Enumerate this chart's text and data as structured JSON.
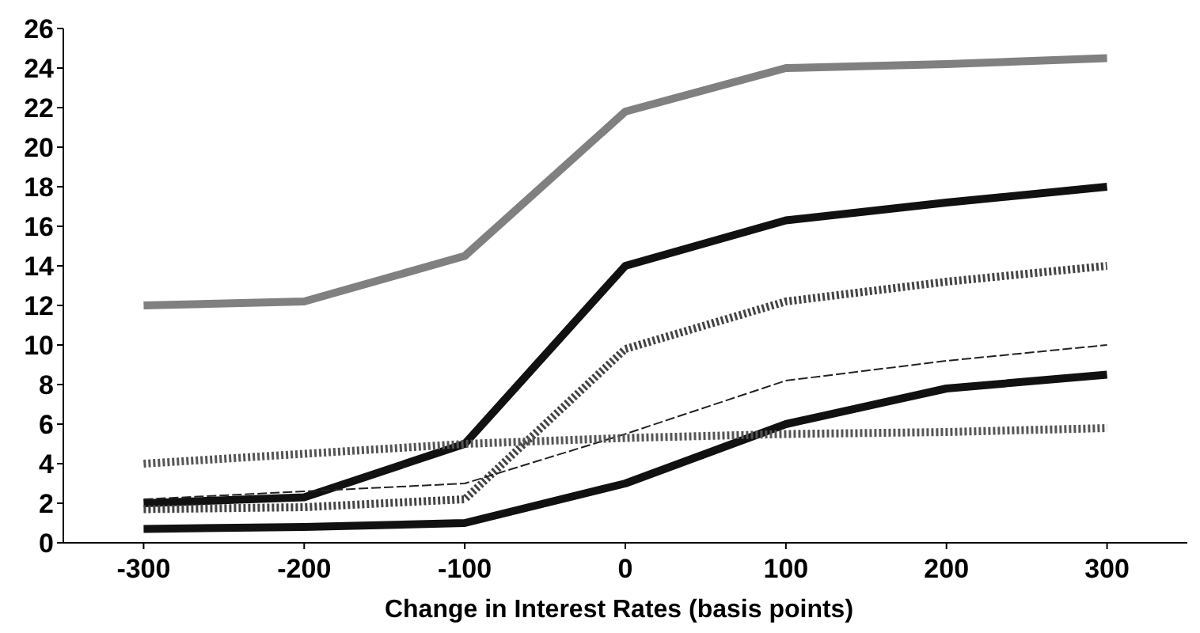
{
  "chart_data": {
    "type": "line",
    "xlabel": "Change in Interest Rates (basis points)",
    "x": [
      -300,
      -200,
      -100,
      0,
      100,
      200,
      300
    ],
    "xlim": [
      -350,
      350
    ],
    "xticks": [
      -300,
      -200,
      -100,
      0,
      100,
      200,
      300
    ],
    "ylim": [
      0,
      26
    ],
    "yticks": [
      0,
      2,
      4,
      6,
      8,
      10,
      12,
      14,
      16,
      18,
      20,
      22,
      24,
      26
    ],
    "grid": false,
    "marker": "none",
    "series": [
      {
        "color": "#808080",
        "line_style": "solid",
        "values": [
          12,
          12.2,
          14.5,
          21.8,
          24,
          24.2,
          24.5
        ]
      },
      {
        "color": "#111111",
        "line_style": "solid",
        "values": [
          2,
          2.3,
          5,
          14,
          16.3,
          17.2,
          18
        ]
      },
      {
        "color": "#444444",
        "line_style": "dotted",
        "values": [
          1.7,
          1.8,
          2.2,
          9.8,
          12.2,
          13.2,
          14
        ]
      },
      {
        "color": "#222222",
        "line_style": "dashed",
        "values": [
          2.2,
          2.6,
          3,
          5.5,
          8.2,
          9.2,
          10
        ]
      },
      {
        "color": "#111111",
        "line_style": "solid",
        "values": [
          0.7,
          0.8,
          1,
          3,
          6,
          7.8,
          8.5
        ]
      },
      {
        "color": "#555555",
        "line_style": "dotted",
        "values": [
          4,
          4.5,
          5,
          5.3,
          5.5,
          5.6,
          5.8
        ]
      }
    ]
  }
}
